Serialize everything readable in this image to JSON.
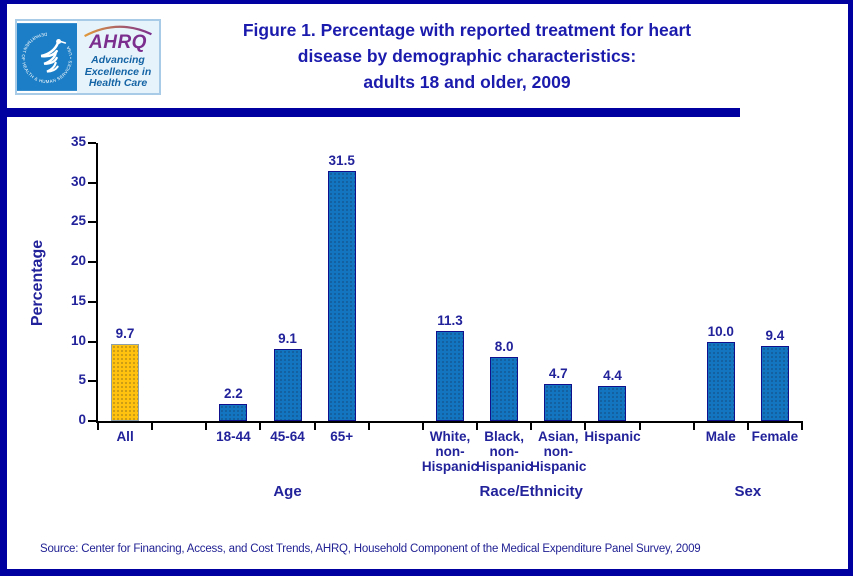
{
  "page": {
    "title_lines": [
      "Figure 1. Percentage with reported treatment for heart",
      "disease by demographic characteristics:",
      "adults 18 and older, 2009"
    ],
    "source": "Source: Center for Financing, Access, and Cost Trends, AHRQ, Household Component of the Medical Expenditure Panel Survey, 2009"
  },
  "logo": {
    "seal_text": "DEPARTMENT OF HEALTH & HUMAN SERVICES • USA",
    "ahrq_wordmark": "AHRQ",
    "tagline_lines": [
      "Advancing",
      "Excellence in",
      "Health Care"
    ]
  },
  "colors": {
    "navy_text": "#22229B",
    "structural_navy": "#0000A0",
    "bar_blue": "#1375BF",
    "bar_blue_border": "#10108C",
    "bar_gold": "#FFC20E",
    "bar_gold_border": "#8FA0AA",
    "axis": "#000000",
    "hhs_seal_blue": "#1B7EC6",
    "ahrq_purple": "#7B2E8E",
    "ahrq_tagline_blue": "#1464A5"
  },
  "chart_data": {
    "type": "bar",
    "title": "Figure 1. Percentage with reported treatment for heart disease by demographic characteristics: adults 18 and older, 2009",
    "xlabel": "",
    "ylabel": "Percentage",
    "ylim": [
      0,
      35
    ],
    "yticks": [
      0,
      5,
      10,
      15,
      20,
      25,
      30,
      35
    ],
    "grid": false,
    "legend": "none",
    "slots": 13,
    "bars": [
      {
        "category": "All",
        "label_lines": [
          "All"
        ],
        "value": 9.7,
        "value_label": "9.7",
        "slot": 0,
        "color": "#FFC20E",
        "border_color": "#8FA0AA"
      },
      {
        "category": "18-44",
        "label_lines": [
          "18-44"
        ],
        "value": 2.2,
        "value_label": "2.2",
        "slot": 2,
        "color": "#1375BF",
        "border_color": "#10108C"
      },
      {
        "category": "45-64",
        "label_lines": [
          "45-64"
        ],
        "value": 9.1,
        "value_label": "9.1",
        "slot": 3,
        "color": "#1375BF",
        "border_color": "#10108C"
      },
      {
        "category": "65+",
        "label_lines": [
          "65+"
        ],
        "value": 31.5,
        "value_label": "31.5",
        "slot": 4,
        "color": "#1375BF",
        "border_color": "#10108C"
      },
      {
        "category": "White, non-Hispanic",
        "label_lines": [
          "White,",
          "non-",
          "Hispanic"
        ],
        "value": 11.3,
        "value_label": "11.3",
        "slot": 6,
        "color": "#1375BF",
        "border_color": "#10108C"
      },
      {
        "category": "Black, non-Hispanic",
        "label_lines": [
          "Black,",
          "non-",
          "Hispanic"
        ],
        "value": 8.0,
        "value_label": "8.0",
        "slot": 7,
        "color": "#1375BF",
        "border_color": "#10108C"
      },
      {
        "category": "Asian, non-Hispanic",
        "label_lines": [
          "Asian,",
          "non-",
          "Hispanic"
        ],
        "value": 4.7,
        "value_label": "4.7",
        "slot": 8,
        "color": "#1375BF",
        "border_color": "#10108C"
      },
      {
        "category": "Hispanic",
        "label_lines": [
          "Hispanic"
        ],
        "value": 4.4,
        "value_label": "4.4",
        "slot": 9,
        "color": "#1375BF",
        "border_color": "#10108C"
      },
      {
        "category": "Male",
        "label_lines": [
          "Male"
        ],
        "value": 10.0,
        "value_label": "10.0",
        "slot": 11,
        "color": "#1375BF",
        "border_color": "#10108C"
      },
      {
        "category": "Female",
        "label_lines": [
          "Female"
        ],
        "value": 9.4,
        "value_label": "9.4",
        "slot": 12,
        "color": "#1375BF",
        "border_color": "#10108C"
      }
    ],
    "groups": [
      {
        "label": "Age",
        "from": 2,
        "to": 4
      },
      {
        "label": "Race/Ethnicity",
        "from": 6,
        "to": 9
      },
      {
        "label": "Sex",
        "from": 11,
        "to": 12
      }
    ]
  }
}
